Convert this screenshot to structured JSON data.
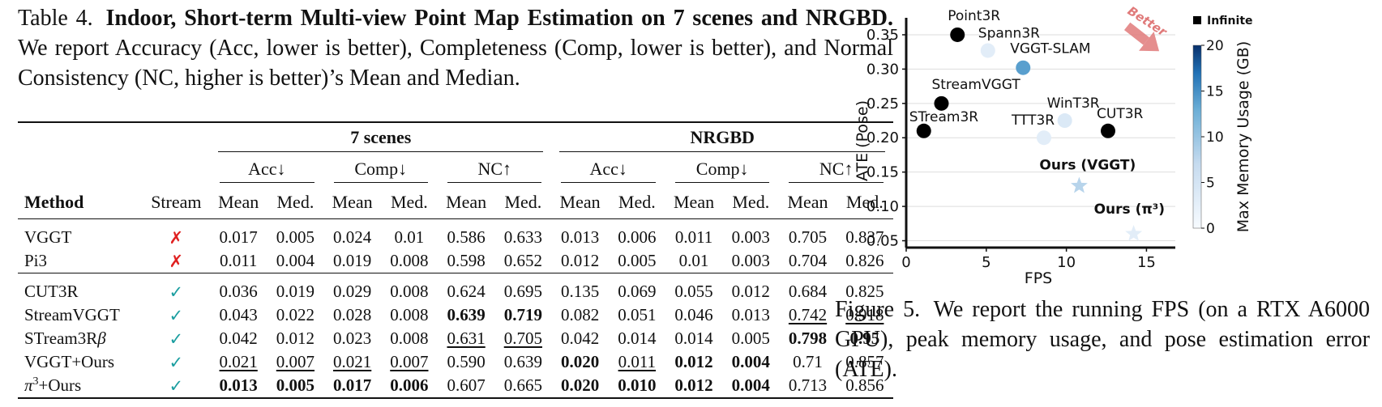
{
  "table4": {
    "caption": {
      "label": "Table 4.",
      "title": "Indoor, Short-term Multi-view Point Map Estimation on 7 scenes and NRGBD.",
      "body": "We report Accuracy (Acc, lower is better), Completeness (Comp, lower is better), and Normal Consistency (NC, higher is better)’s Mean and Median."
    },
    "groups": [
      "7 scenes",
      "NRGBD"
    ],
    "metrics": [
      "Acc↓",
      "Comp↓",
      "NC↑"
    ],
    "header": {
      "method": "Method",
      "stream": "Stream",
      "mean": "Mean",
      "med": "Med."
    },
    "rows": [
      {
        "name": "VGGT",
        "stream": "✗",
        "values": [
          "0.017",
          "0.005",
          "0.024",
          "0.01",
          "0.586",
          "0.633",
          "0.013",
          "0.006",
          "0.011",
          "0.003",
          "0.705",
          "0.837"
        ]
      },
      {
        "name": "Pi3",
        "stream": "✗",
        "values": [
          "0.011",
          "0.004",
          "0.019",
          "0.008",
          "0.598",
          "0.652",
          "0.012",
          "0.005",
          "0.01",
          "0.003",
          "0.704",
          "0.826"
        ]
      },
      {
        "name": "CUT3R",
        "stream": "✓",
        "values": [
          "0.036",
          "0.019",
          "0.029",
          "0.008",
          "0.624",
          "0.695",
          "0.135",
          "0.069",
          "0.055",
          "0.012",
          "0.684",
          "0.825"
        ]
      },
      {
        "name": "StreamVGGT",
        "stream": "✓",
        "values": [
          "0.043",
          "0.022",
          "0.028",
          "0.008",
          "0.639",
          "0.719",
          "0.082",
          "0.051",
          "0.046",
          "0.013",
          "0.742",
          "0.918"
        ]
      },
      {
        "name": "STream3R",
        "name_suffix": "β",
        "stream": "✓",
        "values": [
          "0.042",
          "0.012",
          "0.023",
          "0.008",
          "0.631",
          "0.705",
          "0.042",
          "0.014",
          "0.014",
          "0.005",
          "0.798",
          "0.95"
        ]
      },
      {
        "name": "VGGT+Ours",
        "stream": "✓",
        "values": [
          "0.021",
          "0.007",
          "0.021",
          "0.007",
          "0.590",
          "0.639",
          "0.020",
          "0.011",
          "0.012",
          "0.004",
          "0.71",
          "0.857"
        ]
      },
      {
        "name_prefix": "π",
        "name_sup": "3",
        "name": "+Ours",
        "stream": "✓",
        "values": [
          "0.013",
          "0.005",
          "0.017",
          "0.006",
          "0.607",
          "0.665",
          "0.020",
          "0.010",
          "0.012",
          "0.004",
          "0.713",
          "0.856"
        ]
      }
    ]
  },
  "figure5": {
    "caption": {
      "label": "Figure 5.",
      "body": "We report the running FPS (on a RTX A6000 GPU), peak memory usage, and pose estimation error (ATE)."
    },
    "chart_data": {
      "type": "scatter",
      "xlabel": "FPS",
      "ylabel": "ATE (Pose)",
      "xlim": [
        0,
        16.8
      ],
      "ylim": [
        0.04,
        0.37
      ],
      "xticks": [
        "0",
        "5",
        "10",
        "15"
      ],
      "yticks": [
        "0.05",
        "0.10",
        "0.15",
        "0.20",
        "0.25",
        "0.30",
        "0.35"
      ],
      "grid": "horizontal",
      "colorbar": {
        "label": "Max Memory Usage (GB)",
        "ticks": [
          "0",
          "5",
          "10",
          "15",
          "20"
        ],
        "range": [
          0,
          20
        ]
      },
      "legend": {
        "label": "Infinite",
        "color": "#000000",
        "position": "top-right"
      },
      "annotation": {
        "text": "Better",
        "color": "#e07a7a"
      },
      "points": [
        {
          "label": "Point3R",
          "x": 3.2,
          "y": 0.35,
          "infinite": true,
          "memory_gb": null,
          "marker": "circle"
        },
        {
          "label": "Spann3R",
          "x": 5.1,
          "y": 0.327,
          "infinite": false,
          "memory_gb": 3,
          "marker": "circle"
        },
        {
          "label": "VGGT-SLAM",
          "x": 7.3,
          "y": 0.302,
          "infinite": false,
          "memory_gb": 14,
          "marker": "circle"
        },
        {
          "label": "StreamVGGT",
          "x": 2.2,
          "y": 0.25,
          "infinite": true,
          "memory_gb": null,
          "marker": "circle"
        },
        {
          "label": "STream3R",
          "x": 1.1,
          "y": 0.21,
          "infinite": true,
          "memory_gb": null,
          "marker": "circle"
        },
        {
          "label": "TTT3R",
          "x": 8.6,
          "y": 0.2,
          "infinite": false,
          "memory_gb": 3,
          "marker": "circle"
        },
        {
          "label": "WinT3R",
          "x": 9.9,
          "y": 0.225,
          "infinite": false,
          "memory_gb": 4,
          "marker": "circle"
        },
        {
          "label": "CUT3R",
          "x": 12.6,
          "y": 0.21,
          "infinite": true,
          "memory_gb": null,
          "marker": "circle"
        },
        {
          "label": "Ours (VGGT)",
          "x": 10.8,
          "y": 0.13,
          "infinite": false,
          "memory_gb": 8,
          "marker": "star",
          "bold": true
        },
        {
          "label": "Ours (π³)",
          "x": 14.2,
          "y": 0.06,
          "infinite": false,
          "memory_gb": 3,
          "marker": "star",
          "bold": true
        }
      ]
    }
  }
}
